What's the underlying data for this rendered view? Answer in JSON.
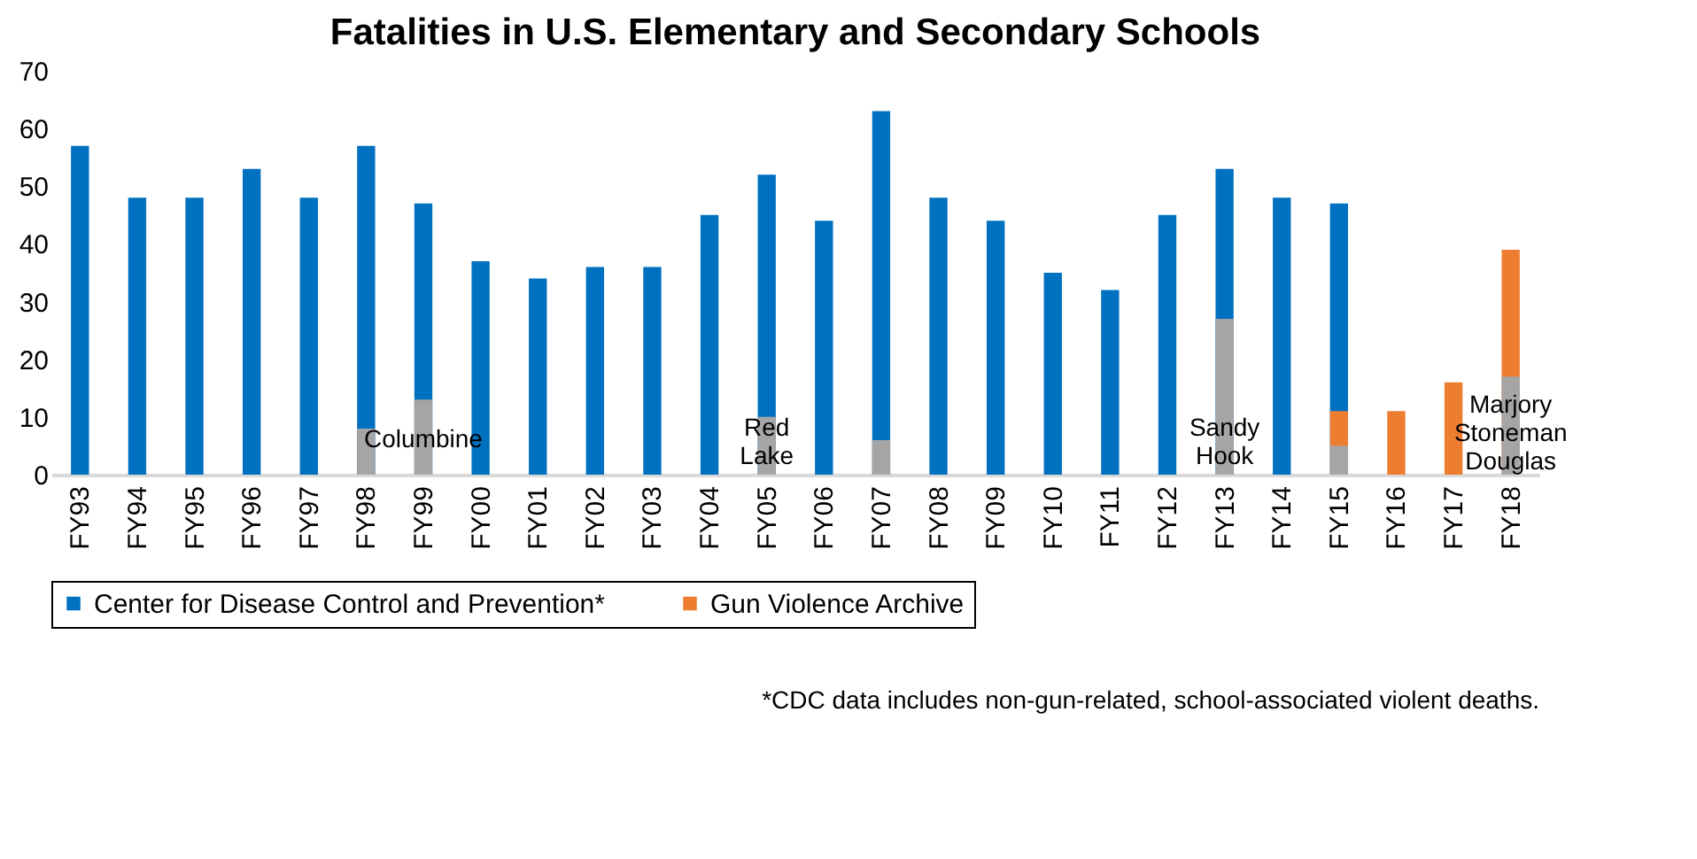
{
  "chart_data": {
    "type": "bar",
    "title": "Fatalities in U.S. Elementary and Secondary Schools",
    "categories": [
      "FY93",
      "FY94",
      "FY95",
      "FY96",
      "FY97",
      "FY98",
      "FY99",
      "FY00",
      "FY01",
      "FY02",
      "FY03",
      "FY04",
      "FY05",
      "FY06",
      "FY07",
      "FY08",
      "FY09",
      "FY10",
      "FY11",
      "FY12",
      "FY13",
      "FY14",
      "FY15",
      "FY16",
      "FY17",
      "FY18"
    ],
    "series": [
      {
        "name": "Center for Disease Control and Prevention*",
        "color": "#0070c0",
        "values": [
          57,
          48,
          48,
          53,
          48,
          57,
          47,
          37,
          34,
          36,
          36,
          45,
          52,
          44,
          63,
          48,
          44,
          35,
          32,
          45,
          53,
          48,
          47,
          null,
          null,
          null
        ]
      },
      {
        "name": "Gun Violence Archive",
        "color": "#ed7d31",
        "values": [
          null,
          null,
          null,
          null,
          null,
          null,
          null,
          null,
          null,
          null,
          null,
          null,
          null,
          null,
          null,
          null,
          null,
          null,
          null,
          null,
          null,
          null,
          11,
          11,
          16,
          39
        ]
      },
      {
        "color": "#a5a5a5",
        "values": [
          null,
          null,
          null,
          null,
          null,
          8,
          13,
          null,
          null,
          null,
          null,
          null,
          10,
          null,
          6,
          null,
          null,
          null,
          null,
          null,
          27,
          null,
          5,
          null,
          null,
          17
        ]
      }
    ],
    "ylim": [
      0,
      70
    ],
    "yticks": [
      0,
      10,
      20,
      30,
      40,
      50,
      60,
      70
    ],
    "grid": false,
    "legend": "bottom",
    "annotations": [
      {
        "text": "Columbine",
        "x": "FY99",
        "y": 6
      },
      {
        "text": "Red\nLake",
        "x": "FY05",
        "y": 8
      },
      {
        "text": "Sandy\nHook",
        "x": "FY13",
        "y": 8
      },
      {
        "text": "Marjory\nStoneman\nDouglas",
        "x": "FY18",
        "y": 12
      },
      "*CDC data includes non-gun-related, school-associated violent deaths."
    ]
  }
}
